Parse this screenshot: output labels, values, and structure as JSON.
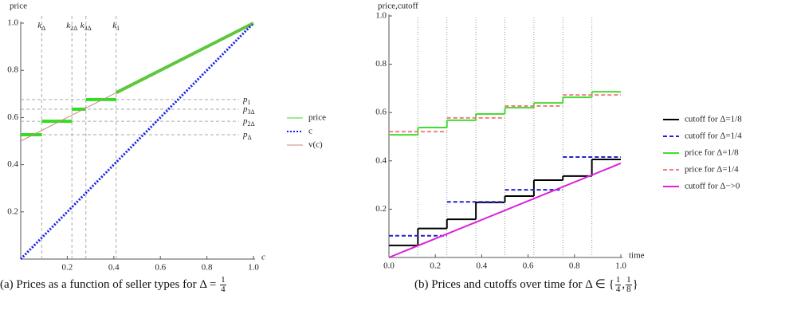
{
  "chart_data": [
    {
      "type": "line",
      "xlabel": "c",
      "ylabel": "price",
      "xlim": [
        0,
        1
      ],
      "ylim": [
        0,
        1
      ],
      "xticks": [
        0.2,
        0.4,
        0.6,
        0.8,
        {
          "value": 1,
          "label": "1.0"
        }
      ],
      "yticks": [
        0.2,
        0.4,
        0.6,
        0.8,
        {
          "value": 1,
          "label": "1.0"
        }
      ],
      "series": [
        {
          "name": "price",
          "color": "#33dd22",
          "style": "thick",
          "x": [
            0,
            0.09,
            0.09,
            0.09,
            0.22,
            0.22,
            0.22,
            0.28,
            0.28,
            0.28,
            0.41,
            0.41,
            0.41,
            1
          ],
          "values": [
            0.527,
            0.527,
            null,
            0.584,
            0.584,
            null,
            0.635,
            0.635,
            null,
            0.676,
            0.676,
            null,
            0.705,
            1
          ]
        },
        {
          "name": "c",
          "color": "#1a1aee",
          "style": "dotted",
          "x": [
            0,
            1
          ],
          "values": [
            0,
            1
          ]
        },
        {
          "name": "v(c)",
          "color": "#c98a80",
          "style": "thin",
          "x": [
            0,
            1
          ],
          "values": [
            0.5,
            1
          ]
        }
      ],
      "vlines": [
        {
          "value": 0.09,
          "label": "k",
          "sub": "Δ"
        },
        {
          "value": 0.22,
          "label": "k",
          "sub": "2Δ"
        },
        {
          "value": 0.28,
          "label": "k",
          "sub": "3Δ"
        },
        {
          "value": 0.41,
          "label": "k",
          "sub": "1"
        }
      ],
      "hlines": [
        {
          "value": 0.676,
          "label": "p",
          "sub": "1"
        },
        {
          "value": 0.635,
          "label": "p",
          "sub": "3Δ"
        },
        {
          "value": 0.584,
          "label": "p",
          "sub": "2Δ"
        },
        {
          "value": 0.527,
          "label": "p",
          "sub": "Δ"
        }
      ]
    },
    {
      "type": "step",
      "xlabel": "time",
      "ylabel": "price,cutoff",
      "xlim": [
        0,
        1
      ],
      "ylim": [
        0,
        1
      ],
      "xticks": [
        {
          "value": 0,
          "label": "0.0"
        },
        0.2,
        0.4,
        0.6,
        0.8,
        {
          "value": 1,
          "label": "1.0"
        }
      ],
      "yticks": [
        0.2,
        0.4,
        0.6,
        0.8,
        {
          "value": 1,
          "label": "1.0"
        }
      ],
      "xgrid": [
        0.125,
        0.25,
        0.375,
        0.5,
        0.625,
        0.75,
        0.875
      ],
      "series": [
        {
          "name": "cutoff for Δ=1/8",
          "color": "#000000",
          "style": "solid",
          "bins": [
            0,
            0.125,
            0.25,
            0.375,
            0.5,
            0.625,
            0.75,
            0.875,
            1
          ],
          "values": [
            0.05,
            0.12,
            0.158,
            0.228,
            0.254,
            0.32,
            0.337,
            0.406
          ]
        },
        {
          "name": "cutoff for Δ=1/4",
          "color": "#2222cc",
          "style": "dashed",
          "bins": [
            0,
            0.25,
            0.5,
            0.75,
            1
          ],
          "values": [
            0.09,
            0.23,
            0.28,
            0.416
          ]
        },
        {
          "name": "price for Δ=1/8",
          "color": "#44dd33",
          "style": "solid",
          "bins": [
            0,
            0.125,
            0.25,
            0.375,
            0.5,
            0.625,
            0.75,
            0.875,
            1
          ],
          "values": [
            0.508,
            0.538,
            0.568,
            0.594,
            0.62,
            0.64,
            0.663,
            0.686
          ]
        },
        {
          "name": "price for Δ=1/4",
          "color": "#f08080",
          "style": "dashed",
          "bins": [
            0,
            0.25,
            0.5,
            0.75,
            1
          ],
          "values": [
            0.521,
            0.578,
            0.627,
            0.673
          ]
        },
        {
          "name": "cutoff for Δ−>0",
          "color": "#dd22dd",
          "style": "line",
          "x": [
            0,
            1
          ],
          "values": [
            0,
            0.39
          ]
        }
      ]
    }
  ],
  "captions": [
    [
      {
        "text": "(a) Prices as a function of seller types for Δ = "
      },
      {
        "num": "1",
        "den": "4"
      }
    ],
    [
      {
        "text": "(b) Prices and cutoffs over time for Δ ∈ {"
      },
      {
        "num": "1",
        "den": "4"
      },
      {
        "text": ","
      },
      {
        "num": "1",
        "den": "8"
      },
      {
        "text": "}"
      }
    ]
  ]
}
